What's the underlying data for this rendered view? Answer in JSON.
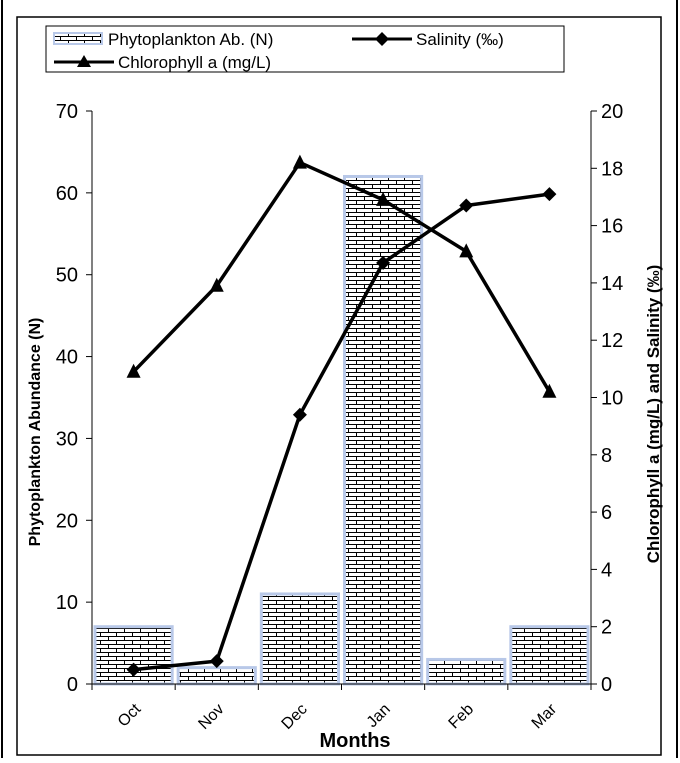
{
  "chart_data": {
    "type": "bar",
    "categories": [
      "Oct",
      "Nov",
      "Dec",
      "Jan",
      "Feb",
      "Mar"
    ],
    "xlabel": "Months",
    "ylabel": "Phytoplankton Abundance (N)",
    "y2label": "Chlorophyll a (mg/L) and Salinity (‰)",
    "ylim": [
      0,
      70
    ],
    "y2lim": [
      0,
      20
    ],
    "yticks": [
      "0",
      "10",
      "20",
      "30",
      "40",
      "50",
      "60",
      "70"
    ],
    "y2ticks": [
      "0",
      "2",
      "4",
      "6",
      "8",
      "10",
      "12",
      "14",
      "16",
      "18",
      "20"
    ],
    "grid": false,
    "legend_position": "top",
    "series": [
      {
        "name": "Phytoplankton Ab. (N)",
        "kind": "bar",
        "axis": "left",
        "values": [
          7,
          2,
          11,
          62,
          3,
          7
        ]
      },
      {
        "name": "Salinity (‰)",
        "kind": "line",
        "marker": "diamond",
        "axis": "right",
        "values": [
          0.5,
          0.8,
          9.4,
          14.7,
          16.7,
          17.1
        ]
      },
      {
        "name": "Chlorophyll a (mg/L)",
        "kind": "line",
        "marker": "triangle",
        "axis": "right",
        "values": [
          10.9,
          13.9,
          18.2,
          16.9,
          15.1,
          10.2
        ]
      }
    ],
    "colors": {
      "bar_border": "#b8c8e8",
      "line": "#000000",
      "frame": "#000000"
    }
  }
}
